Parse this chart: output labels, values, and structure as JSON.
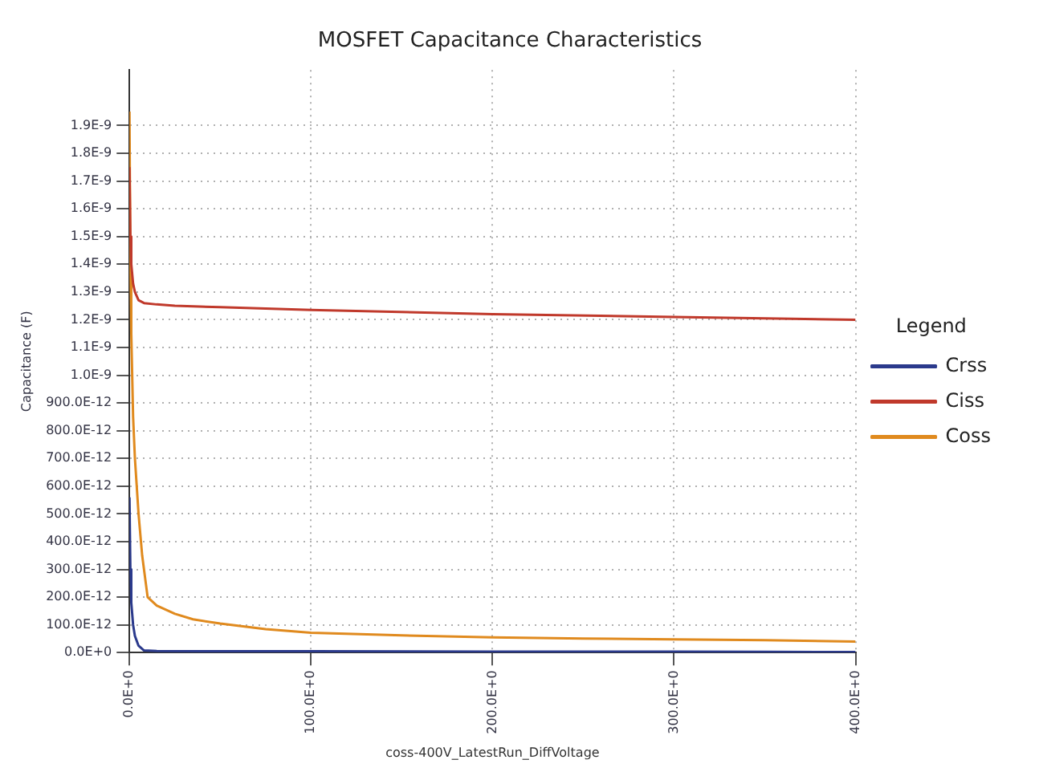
{
  "chart_data": {
    "type": "line",
    "title": "MOSFET Capacitance Characteristics",
    "xlabel": "coss-400V_LatestRun_DiffVoltage",
    "ylabel": "Capacitance (F)",
    "legend_title": "Legend",
    "legend": "right",
    "grid": true,
    "line_style": "solid",
    "marker": "none",
    "xlim": [
      0,
      400
    ],
    "xticks": [
      {
        "value": 0,
        "label": "0.0E+0"
      },
      {
        "value": 100,
        "label": "100.0E+0"
      },
      {
        "value": 200,
        "label": "200.0E+0"
      },
      {
        "value": 300,
        "label": "300.0E+0"
      },
      {
        "value": 400,
        "label": "400.0E+0"
      }
    ],
    "ylim": [
      0,
      2.1e-09
    ],
    "yticks": [
      {
        "value": 0,
        "label": "0.0E+0"
      },
      {
        "value": 1e-10,
        "label": "100.0E-12"
      },
      {
        "value": 2e-10,
        "label": "200.0E-12"
      },
      {
        "value": 3e-10,
        "label": "300.0E-12"
      },
      {
        "value": 4e-10,
        "label": "400.0E-12"
      },
      {
        "value": 5e-10,
        "label": "500.0E-12"
      },
      {
        "value": 6e-10,
        "label": "600.0E-12"
      },
      {
        "value": 7e-10,
        "label": "700.0E-12"
      },
      {
        "value": 8e-10,
        "label": "800.0E-12"
      },
      {
        "value": 9e-10,
        "label": "900.0E-12"
      },
      {
        "value": 1e-09,
        "label": "1.0E-9"
      },
      {
        "value": 1.1e-09,
        "label": "1.1E-9"
      },
      {
        "value": 1.2e-09,
        "label": "1.2E-9"
      },
      {
        "value": 1.3e-09,
        "label": "1.3E-9"
      },
      {
        "value": 1.4e-09,
        "label": "1.4E-9"
      },
      {
        "value": 1.5e-09,
        "label": "1.5E-9"
      },
      {
        "value": 1.6e-09,
        "label": "1.6E-9"
      },
      {
        "value": 1.7e-09,
        "label": "1.7E-9"
      },
      {
        "value": 1.8e-09,
        "label": "1.8E-9"
      },
      {
        "value": 1.9e-09,
        "label": "1.9E-9"
      }
    ],
    "series": [
      {
        "name": "Crss",
        "color": "#2b3a8c",
        "x": [
          0,
          0.5,
          1,
          2,
          3,
          5,
          8,
          15,
          50,
          100,
          200,
          300,
          350,
          400
        ],
        "values": [
          5.6e-10,
          3e-10,
          1.8e-10,
          1e-10,
          6e-11,
          2.5e-11,
          8e-12,
          6e-12,
          5e-12,
          5e-12,
          4e-12,
          4e-12,
          3e-12,
          2e-12
        ]
      },
      {
        "name": "Ciss",
        "color": "#c0392b",
        "x": [
          0,
          0.5,
          1,
          2,
          3,
          5,
          8,
          15,
          25,
          50,
          100,
          200,
          300,
          400
        ],
        "values": [
          1.75e-09,
          1.5e-09,
          1.4e-09,
          1.33e-09,
          1.3e-09,
          1.27e-09,
          1.26e-09,
          1.255e-09,
          1.25e-09,
          1.245e-09,
          1.235e-09,
          1.22e-09,
          1.21e-09,
          1.2e-09
        ]
      },
      {
        "name": "Coss",
        "color": "#e08a1e",
        "x": [
          0,
          0.5,
          1,
          2,
          3,
          5,
          7,
          10,
          15,
          25,
          35,
          50,
          75,
          100,
          150,
          200,
          250,
          300,
          350,
          400
        ],
        "values": [
          1.95e-09,
          1.4e-09,
          1.15e-09,
          8.5e-10,
          7e-10,
          5e-10,
          3.5e-10,
          2e-10,
          1.7e-10,
          1.4e-10,
          1.2e-10,
          1.05e-10,
          8.5e-11,
          7.2e-11,
          6.2e-11,
          5.5e-11,
          5.1e-11,
          4.8e-11,
          4.5e-11,
          4e-11
        ]
      }
    ]
  }
}
